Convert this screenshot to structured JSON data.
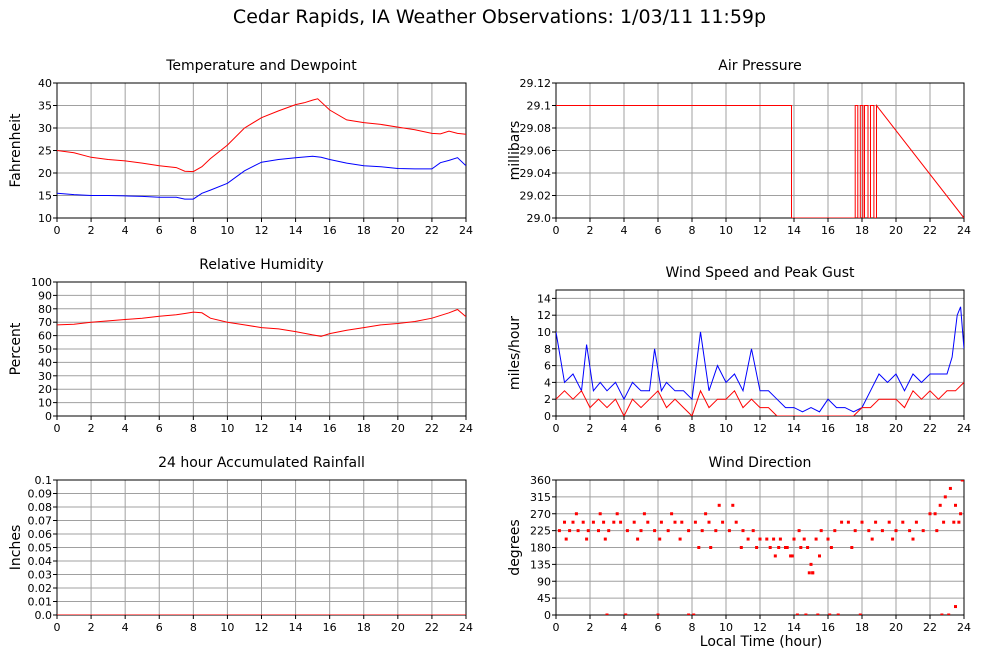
{
  "title": "Cedar Rapids, IA Weather Observations: 1/03/11 11:59p",
  "xaxis_title": "Local Time (hour)",
  "colors": {
    "red": "#ff0000",
    "blue": "#0000ff",
    "grid": "#a0a0a0"
  },
  "chart_data": [
    {
      "type": "line",
      "title": "Temperature and Dewpoint",
      "ylabel": "Fahrenheit",
      "xlim": [
        0,
        24
      ],
      "ylim": [
        10,
        40
      ],
      "xticks": [
        0,
        2,
        4,
        6,
        8,
        10,
        12,
        14,
        16,
        18,
        20,
        22,
        24
      ],
      "yticks": [
        10,
        15,
        20,
        25,
        30,
        35,
        40
      ],
      "grid": true,
      "series": [
        {
          "color": "#ff0000",
          "x": [
            0,
            1,
            2,
            3,
            4,
            5,
            6,
            7,
            7.5,
            8,
            8.5,
            9,
            10,
            11,
            12,
            13,
            14,
            14.5,
            15,
            15.3,
            16,
            17,
            18,
            19,
            20,
            21,
            22,
            22.5,
            23,
            23.5,
            24
          ],
          "y": [
            25,
            24.5,
            23.5,
            23,
            22.7,
            22.2,
            21.6,
            21.2,
            20.4,
            20.3,
            21.4,
            23.2,
            26.2,
            30,
            32.3,
            33.8,
            35.2,
            35.6,
            36.2,
            36.5,
            34,
            31.8,
            31.2,
            30.8,
            30.2,
            29.6,
            28.8,
            28.7,
            29.3,
            28.8,
            28.6
          ]
        },
        {
          "color": "#0000ff",
          "x": [
            0,
            1,
            2,
            3,
            4,
            5,
            6,
            7,
            7.5,
            8,
            8.5,
            9,
            10,
            11,
            12,
            13,
            14,
            15,
            15.5,
            16,
            17,
            18,
            19,
            20,
            21,
            22,
            22.5,
            23,
            23.5,
            24
          ],
          "y": [
            15.5,
            15.2,
            15,
            15,
            14.9,
            14.8,
            14.6,
            14.6,
            14.2,
            14.2,
            15.5,
            16.2,
            17.7,
            20.5,
            22.4,
            23,
            23.4,
            23.7,
            23.5,
            23,
            22.2,
            21.6,
            21.4,
            21,
            20.9,
            20.9,
            22.3,
            22.8,
            23.4,
            21.6
          ]
        }
      ]
    },
    {
      "type": "line",
      "title": "Air Pressure",
      "ylabel": "millibars",
      "xlim": [
        0,
        24
      ],
      "ylim": [
        29,
        29.12
      ],
      "xticks": [
        0,
        2,
        4,
        6,
        8,
        10,
        12,
        14,
        16,
        18,
        20,
        22,
        24
      ],
      "yticks": [
        29.0,
        29.02,
        29.04,
        29.06,
        29.08,
        29.1,
        29.12
      ],
      "ytick_labels": [
        "29.0",
        "29.02",
        "29.04",
        "29.06",
        "29.08",
        "29.1",
        "29.12"
      ],
      "grid": true,
      "series": [
        {
          "color": "#ff0000",
          "step": true,
          "x": [
            0,
            13.85,
            13.85,
            17.6,
            17.6,
            17.75,
            17.75,
            17.9,
            17.9,
            18.05,
            18.05,
            18.15,
            18.15,
            18.35,
            18.35,
            18.5,
            18.5,
            18.7,
            18.7,
            18.85,
            18.85,
            24
          ],
          "y": [
            29.1,
            29.1,
            29.0,
            29.0,
            29.1,
            29.1,
            29.0,
            29.0,
            29.1,
            29.1,
            29.0,
            29.0,
            29.1,
            29.1,
            29.0,
            29.0,
            29.1,
            29.1,
            29.0,
            29.0,
            29.1,
            29.0
          ]
        }
      ]
    },
    {
      "type": "line",
      "title": "Relative Humidity",
      "ylabel": "Percent",
      "xlim": [
        0,
        24
      ],
      "ylim": [
        0,
        100
      ],
      "xticks": [
        0,
        2,
        4,
        6,
        8,
        10,
        12,
        14,
        16,
        18,
        20,
        22,
        24
      ],
      "yticks": [
        0,
        10,
        20,
        30,
        40,
        50,
        60,
        70,
        80,
        90,
        100
      ],
      "grid": true,
      "series": [
        {
          "color": "#ff0000",
          "x": [
            0,
            1,
            2,
            3,
            4,
            5,
            6,
            7,
            7.5,
            8,
            8.5,
            9,
            10,
            11,
            12,
            13,
            14,
            15,
            15.5,
            16,
            17,
            18,
            19,
            20,
            21,
            22,
            23,
            23.5,
            24
          ],
          "y": [
            68,
            68.5,
            70,
            71,
            72,
            73,
            74.5,
            75.5,
            76.5,
            77.5,
            77,
            73,
            70,
            68,
            66,
            65,
            63,
            60.5,
            59.5,
            61.5,
            64,
            66,
            68,
            69,
            70.5,
            73,
            77,
            79.5,
            74
          ]
        }
      ]
    },
    {
      "type": "line",
      "title": "Wind Speed and Peak Gust",
      "ylabel": "miles/hour",
      "xlim": [
        0,
        24
      ],
      "ylim": [
        0,
        15
      ],
      "xticks": [
        0,
        2,
        4,
        6,
        8,
        10,
        12,
        14,
        16,
        18,
        20,
        22,
        24
      ],
      "yticks": [
        0,
        2,
        4,
        6,
        8,
        10,
        12,
        14
      ],
      "grid": true,
      "series": [
        {
          "color": "#0000ff",
          "x": [
            0,
            0.5,
            1,
            1.5,
            1.8,
            2.2,
            2.6,
            3,
            3.5,
            4,
            4.5,
            5,
            5.5,
            5.8,
            6.2,
            6.5,
            7,
            7.5,
            8,
            8.5,
            9,
            9.5,
            10,
            10.5,
            11,
            11.5,
            12,
            12.5,
            13,
            13.5,
            14,
            14.5,
            15,
            15.5,
            16,
            16.5,
            17,
            17.5,
            18,
            18.5,
            19,
            19.5,
            20,
            20.5,
            21,
            21.5,
            22,
            22.5,
            23,
            23.3,
            23.6,
            23.8,
            24
          ],
          "y": [
            10,
            4,
            5,
            3,
            8.5,
            3,
            4,
            3,
            4,
            2,
            4,
            3,
            3,
            8,
            3,
            4,
            3,
            3,
            2,
            10,
            3,
            6,
            4,
            5,
            3,
            8,
            3,
            3,
            2,
            1,
            1,
            0.5,
            1,
            0.5,
            2,
            1,
            1,
            0.5,
            1,
            3,
            5,
            4,
            5,
            3,
            5,
            4,
            5,
            5,
            5,
            7,
            12,
            13,
            8
          ]
        },
        {
          "color": "#ff0000",
          "x": [
            0,
            0.5,
            1,
            1.5,
            2,
            2.5,
            3,
            3.5,
            4,
            4.5,
            5,
            5.5,
            6,
            6.5,
            7,
            7.5,
            8,
            8.5,
            9,
            9.5,
            10,
            10.5,
            11,
            11.5,
            12,
            12.5,
            13,
            13.5,
            14,
            14.5,
            15,
            15.5,
            16,
            16.5,
            17,
            17.5,
            18,
            18.5,
            19,
            19.5,
            20,
            20.5,
            21,
            21.5,
            22,
            22.5,
            23,
            23.5,
            24
          ],
          "y": [
            2,
            3,
            2,
            3,
            1,
            2,
            1,
            2,
            0,
            2,
            1,
            2,
            3,
            1,
            2,
            1,
            0,
            3,
            1,
            2,
            2,
            3,
            1,
            2,
            1,
            1,
            0,
            0,
            0,
            0,
            0,
            0,
            0,
            0,
            0,
            0,
            1,
            1,
            2,
            2,
            2,
            1,
            3,
            2,
            3,
            2,
            3,
            3,
            4
          ]
        }
      ]
    },
    {
      "type": "line",
      "title": "24 hour Accumulated Rainfall",
      "ylabel": "Inches",
      "xlim": [
        0,
        24
      ],
      "ylim": [
        0,
        0.1
      ],
      "xticks": [
        0,
        2,
        4,
        6,
        8,
        10,
        12,
        14,
        16,
        18,
        20,
        22,
        24
      ],
      "yticks": [
        0,
        0.01,
        0.02,
        0.03,
        0.04,
        0.05,
        0.06,
        0.07,
        0.08,
        0.09,
        0.1
      ],
      "ytick_labels": [
        "0.0",
        "0.01",
        "0.02",
        "0.03",
        "0.04",
        "0.05",
        "0.06",
        "0.07",
        "0.08",
        "0.09",
        "0.1"
      ],
      "grid": true,
      "series": [
        {
          "color": "#ff0000",
          "x": [
            0,
            24
          ],
          "y": [
            0,
            0
          ]
        }
      ]
    },
    {
      "type": "scatter",
      "title": "Wind Direction",
      "ylabel": "degrees",
      "xlim": [
        0,
        24
      ],
      "ylim": [
        0,
        360
      ],
      "xticks": [
        0,
        2,
        4,
        6,
        8,
        10,
        12,
        14,
        16,
        18,
        20,
        22,
        24
      ],
      "yticks": [
        0,
        45,
        90,
        135,
        180,
        225,
        270,
        315,
        360
      ],
      "grid": true,
      "series": [
        {
          "color": "#ff0000",
          "x": [
            0.2,
            0.5,
            0.8,
            1.0,
            1.3,
            1.6,
            1.9,
            2.2,
            2.5,
            2.8,
            3.1,
            3.4,
            3.8,
            4.2,
            4.6,
            5.0,
            5.4,
            5.8,
            6.2,
            6.6,
            7.0,
            7.4,
            7.8,
            8.2,
            8.6,
            9.0,
            9.4,
            9.8,
            10.2,
            10.6,
            11.0,
            11.3,
            11.6,
            12.0,
            12.4,
            12.8,
            13.2,
            13.6,
            14.0,
            14.3,
            14.6,
            14.8,
            15.0,
            15.3,
            15.6,
            16.0,
            16.4,
            16.8,
            17.2,
            17.6,
            18.0,
            18.4,
            18.8,
            19.2,
            19.6,
            20.0,
            20.4,
            20.8,
            21.2,
            21.6,
            22.0,
            22.3,
            22.6,
            22.9,
            23.2,
            23.5,
            23.8,
            1.2,
            2.6,
            3.6,
            5.2,
            6.8,
            8.8,
            9.6,
            10.4,
            0.6,
            1.8,
            2.9,
            4.8,
            6.1,
            7.3,
            8.4,
            9.1,
            10.9,
            11.8,
            12.6,
            13.1,
            13.5,
            13.9,
            14.4,
            15.1,
            15.5,
            16.2,
            17.4,
            18.6,
            19.8,
            21.0,
            22.4,
            22.8,
            23.4,
            23.7,
            14.9,
            15.1,
            12.9,
            13.8,
            3.0,
            4.1,
            6.0,
            7.8,
            8.1,
            14.2,
            14.7,
            15.4,
            16.1,
            16.6,
            17.9,
            22.7,
            23.1,
            23.5,
            23.9
          ],
          "y": [
            225,
            247.5,
            225,
            247.5,
            225,
            247.5,
            225,
            247.5,
            225,
            247.5,
            225,
            247.5,
            247.5,
            225,
            247.5,
            225,
            247.5,
            225,
            247.5,
            225,
            247.5,
            247.5,
            225,
            247.5,
            225,
            247.5,
            225,
            247.5,
            225,
            247.5,
            225,
            202.5,
            225,
            202.5,
            202.5,
            202.5,
            202.5,
            180,
            202.5,
            225,
            202.5,
            180,
            135,
            202.5,
            225,
            202.5,
            225,
            247.5,
            247.5,
            225,
            247.5,
            225,
            247.5,
            225,
            247.5,
            225,
            247.5,
            225,
            247.5,
            225,
            270,
            270,
            292.5,
            315,
            337.5,
            292.5,
            270,
            270,
            270,
            270,
            270,
            270,
            270,
            292.5,
            292.5,
            202.5,
            202.5,
            202.5,
            202.5,
            202.5,
            202.5,
            180,
            180,
            180,
            180,
            180,
            180,
            180,
            157.5,
            180,
            112.5,
            157.5,
            180,
            180,
            202.5,
            202.5,
            202.5,
            225,
            247.5,
            247.5,
            247.5,
            112.5,
            112.5,
            157.5,
            157.5,
            0,
            0,
            0,
            0,
            0,
            0,
            0,
            0,
            0,
            0,
            0,
            0,
            0,
            22.5,
            360
          ]
        }
      ]
    }
  ]
}
